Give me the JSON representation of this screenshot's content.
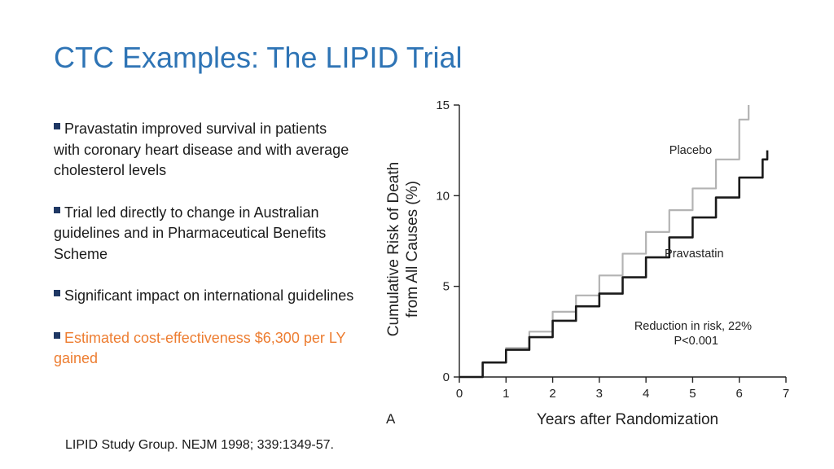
{
  "slide": {
    "title": "CTC Examples: The LIPID Trial",
    "bullets": [
      {
        "text": "Pravastatin improved survival in patients with coronary heart disease and with average cholesterol levels",
        "highlight": false
      },
      {
        "text": "Trial led directly to change in Australian guidelines and in Pharmaceutical Benefits Scheme",
        "highlight": false
      },
      {
        "text": "Significant impact on international guidelines",
        "highlight": false
      },
      {
        "text": "Estimated cost-effectiveness $6,300 per LY gained",
        "highlight": true
      }
    ],
    "citation": "LIPID Study Group. NEJM 1998; 339:1349-57.",
    "colors": {
      "title": "#2e74b5",
      "highlight": "#ed7d31",
      "bullet_mark": "#1f3864"
    }
  },
  "chart_data": {
    "type": "line",
    "panel_label": "A",
    "xlabel": "Years after Randomization",
    "ylabel_line1": "Cumulative Risk of Death",
    "ylabel_line2": "from All Causes (%)",
    "xlim": [
      0,
      7
    ],
    "ylim": [
      0,
      15
    ],
    "x_ticks": [
      0,
      1,
      2,
      3,
      4,
      5,
      6,
      7
    ],
    "y_ticks": [
      0,
      5,
      10,
      15
    ],
    "grid": false,
    "series": [
      {
        "name": "Placebo",
        "color": "#b3b3b3",
        "x": [
          0,
          0.5,
          1.0,
          1.5,
          2.0,
          2.5,
          3.0,
          3.5,
          4.0,
          4.5,
          5.0,
          5.5,
          6.0,
          6.2
        ],
        "y": [
          0,
          0.8,
          1.6,
          2.5,
          3.6,
          4.5,
          5.6,
          6.8,
          8.0,
          9.2,
          10.4,
          12.0,
          14.2,
          15.0
        ]
      },
      {
        "name": "Pravastatin",
        "color": "#1a1a1a",
        "x": [
          0,
          0.5,
          1.0,
          1.5,
          2.0,
          2.5,
          3.0,
          3.5,
          4.0,
          4.5,
          5.0,
          5.5,
          6.0,
          6.5,
          6.6
        ],
        "y": [
          0,
          0.8,
          1.5,
          2.2,
          3.1,
          3.9,
          4.6,
          5.5,
          6.6,
          7.7,
          8.8,
          9.9,
          11.0,
          12.0,
          12.5
        ]
      }
    ],
    "annotations": [
      {
        "text": "Placebo",
        "x": 4.5,
        "y": 12.3
      },
      {
        "text": "Pravastatin",
        "x": 4.4,
        "y": 6.6
      },
      {
        "text": "Reduction in risk, 22%",
        "x": 3.75,
        "y": 2.6
      },
      {
        "text": "P<0.001",
        "x": 4.6,
        "y": 1.8
      }
    ]
  }
}
